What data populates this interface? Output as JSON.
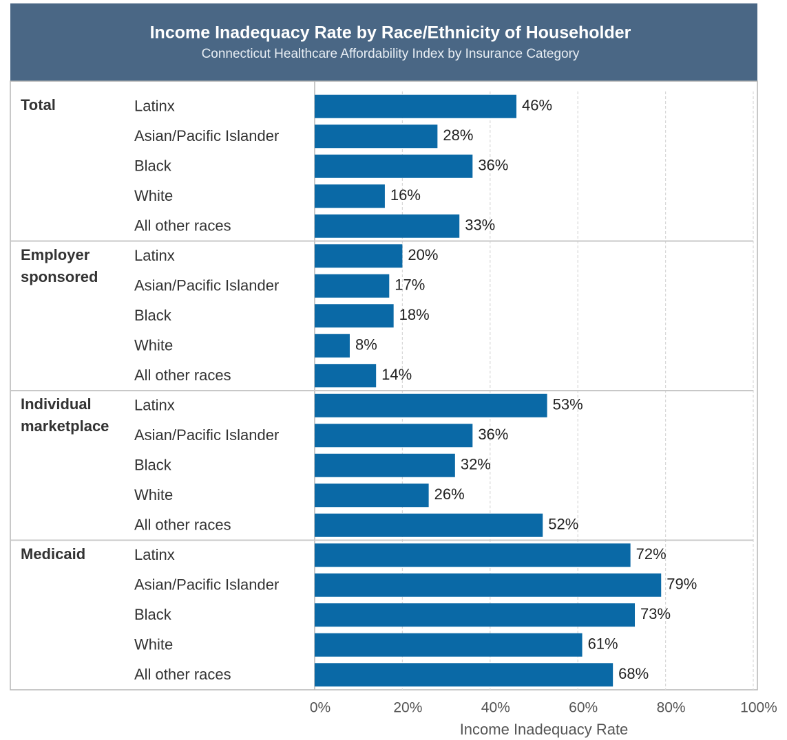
{
  "chart_data": {
    "type": "grouped_bar_horizontal",
    "title": "Income Inadequacy Rate by Race/Ethnicity of Householder",
    "subtitle": "Connecticut Healthcare Affordability Index by Insurance Category",
    "x_label": "Income Inadequacy Rate",
    "color": "#0a69a6",
    "xlim": [
      0,
      100
    ],
    "xticks": [
      {
        "value": 0,
        "label": "0%"
      },
      {
        "value": 20,
        "label": "20%"
      },
      {
        "value": 40,
        "label": "40%"
      },
      {
        "value": 60,
        "label": "60%"
      },
      {
        "value": 80,
        "label": "80%"
      },
      {
        "value": 100,
        "label": "100%"
      }
    ],
    "grid": true,
    "groups": [
      {
        "name": "Total",
        "categories": [
          "Latinx",
          "Asian/Pacific Islander",
          "Black",
          "White",
          "All other races"
        ],
        "values": [
          46,
          28,
          36,
          16,
          33
        ],
        "value_labels": [
          "46%",
          "28%",
          "36%",
          "16%",
          "33%"
        ]
      },
      {
        "name": "Employer sponsored",
        "categories": [
          "Latinx",
          "Asian/Pacific Islander",
          "Black",
          "White",
          "All other races"
        ],
        "values": [
          20,
          17,
          18,
          8,
          14
        ],
        "value_labels": [
          "20%",
          "17%",
          "18%",
          "8%",
          "14%"
        ]
      },
      {
        "name": "Individual marketplace",
        "categories": [
          "Latinx",
          "Asian/Pacific Islander",
          "Black",
          "White",
          "All other races"
        ],
        "values": [
          53,
          36,
          32,
          26,
          52
        ],
        "value_labels": [
          "53%",
          "36%",
          "32%",
          "26%",
          "52%"
        ]
      },
      {
        "name": "Medicaid",
        "categories": [
          "Latinx",
          "Asian/Pacific Islander",
          "Black",
          "White",
          "All other races"
        ],
        "values": [
          72,
          79,
          73,
          61,
          68
        ],
        "value_labels": [
          "72%",
          "79%",
          "73%",
          "61%",
          "68%"
        ]
      }
    ]
  }
}
